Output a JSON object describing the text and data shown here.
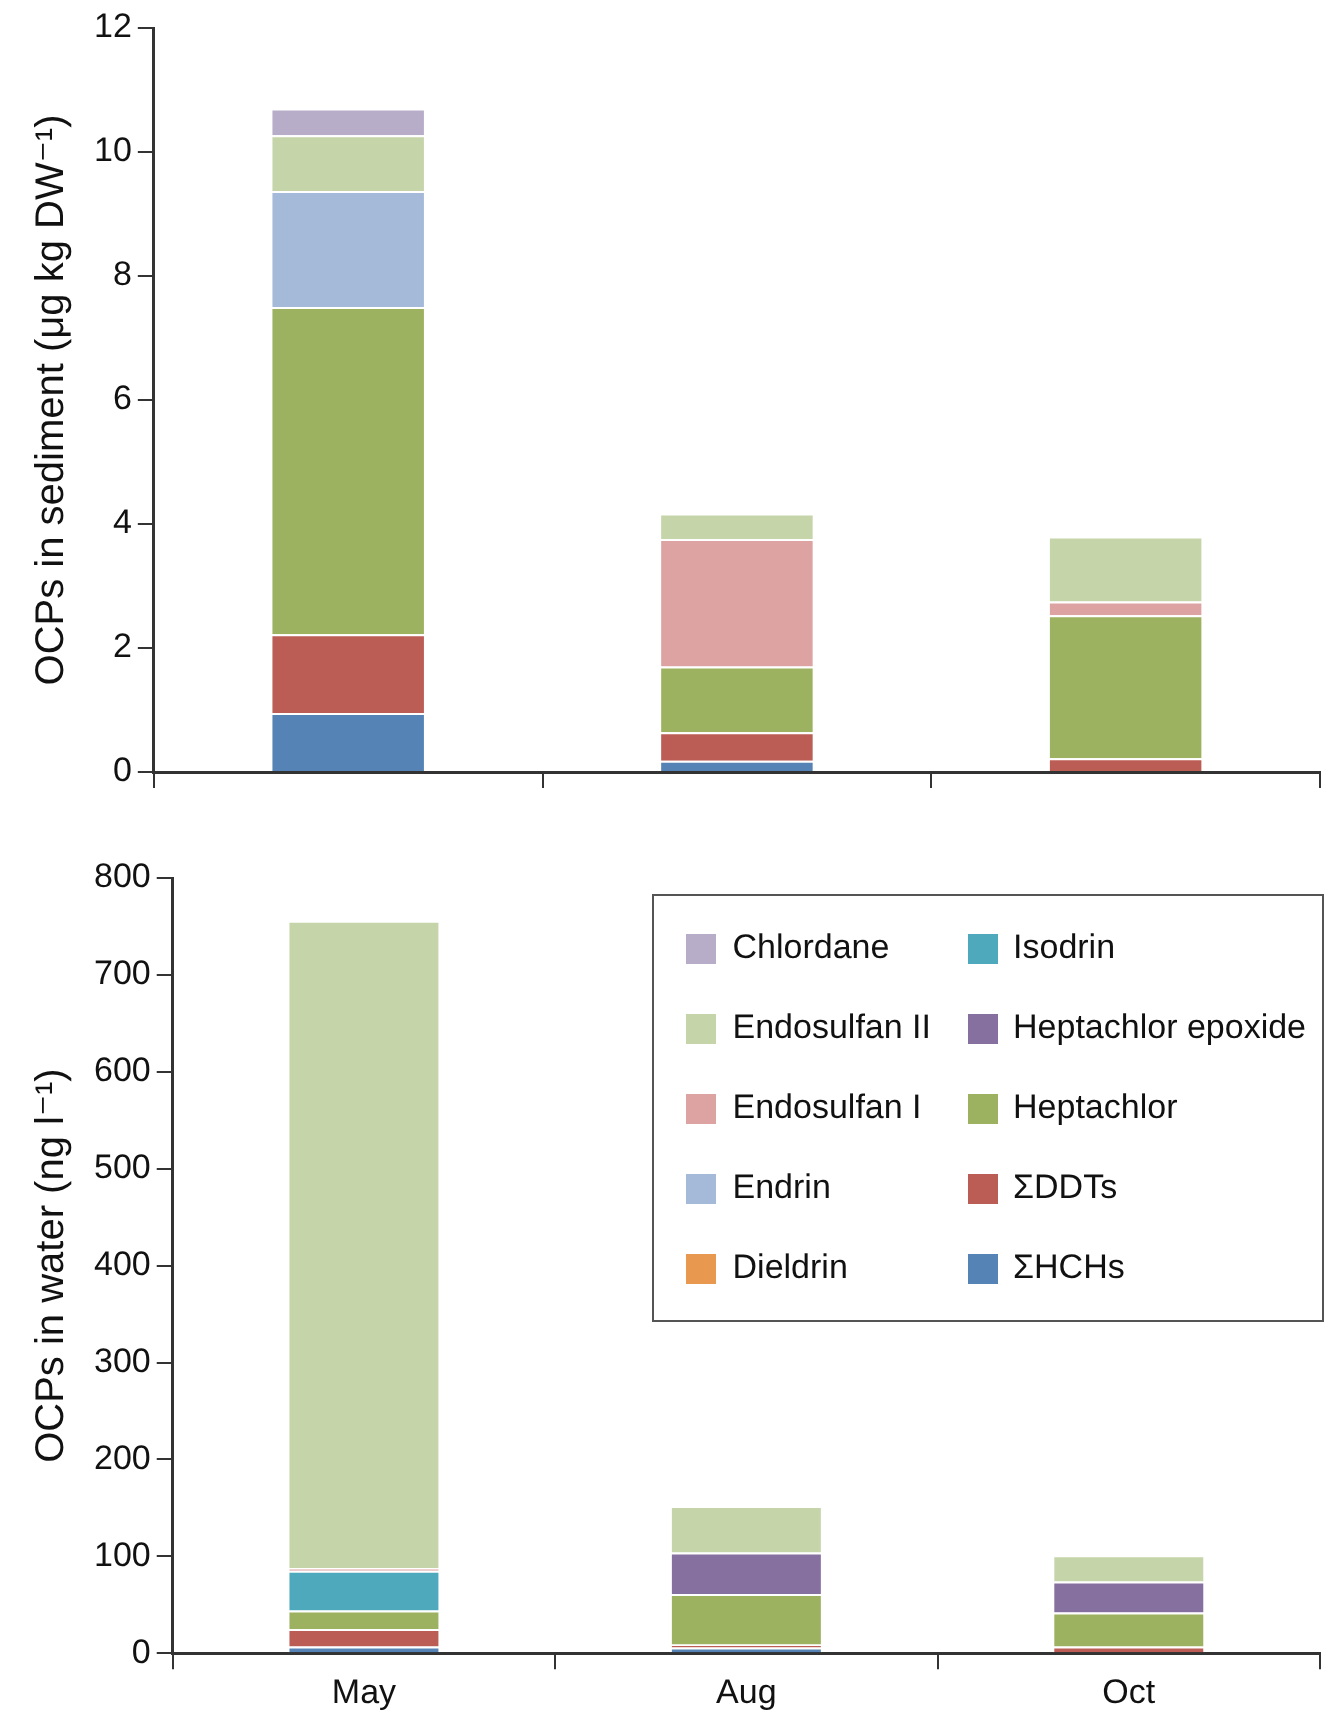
{
  "chart_data": [
    {
      "type": "bar",
      "ylabel": "OCPs in sediment (μg kg DW⁻¹)",
      "categories": [
        null,
        null,
        null
      ],
      "stacked": true,
      "ylim": [
        0,
        12
      ],
      "yticks": [
        0,
        2,
        4,
        6,
        8,
        10,
        12
      ],
      "grid": false,
      "legend": false,
      "tick_labels": "y",
      "series": [
        {
          "color": "#5683b5",
          "values": [
            0.95,
            0.18,
            0
          ]
        },
        {
          "color": "#bb5c55",
          "values": [
            1.27,
            0.46,
            0.22
          ]
        },
        {
          "color": "#9db260",
          "values": [
            5.28,
            1.06,
            2.31
          ]
        },
        {
          "color": "#a5b9d9",
          "values": [
            1.87,
            0,
            0
          ]
        },
        {
          "color": "#dda3a2",
          "values": [
            0,
            2.06,
            0.22
          ]
        },
        {
          "color": "#c6d5a9",
          "values": [
            0.9,
            0.41,
            1.05
          ]
        },
        {
          "color": "#b8adc9",
          "values": [
            0.43,
            0,
            0
          ]
        }
      ]
    },
    {
      "type": "bar",
      "ylabel": "OCPs in water (ng l⁻¹)",
      "categories": [
        "May",
        "Aug",
        "Oct"
      ],
      "stacked": true,
      "ylim": [
        0,
        800
      ],
      "yticks": [
        0,
        100,
        200,
        300,
        400,
        500,
        600,
        700,
        800
      ],
      "grid": false,
      "legend": "top right",
      "series": [
        {
          "name": "ΣHCHs",
          "color": "#5683b5",
          "values": [
            7,
            6,
            0
          ]
        },
        {
          "name": "ΣDDTs",
          "color": "#bb5c55",
          "values": [
            18,
            3,
            7
          ]
        },
        {
          "name": "Heptachlor",
          "color": "#9db260",
          "values": [
            19,
            52,
            35
          ]
        },
        {
          "name": "Heptachlor epoxide",
          "color": "#86709f",
          "values": [
            0,
            43,
            32
          ]
        },
        {
          "name": "Isodrin",
          "color": "#4fa9bd",
          "values": [
            41,
            0,
            0
          ]
        },
        {
          "name": "Dieldrin",
          "color": "#e8994f",
          "values": [
            0,
            0,
            0
          ]
        },
        {
          "name": "Endrin",
          "color": "#a5b9d9",
          "values": [
            0,
            0,
            0
          ]
        },
        {
          "name": "Endosulfan I",
          "color": "#dda3a2",
          "values": [
            3,
            0,
            0
          ]
        },
        {
          "name": "Endosulfan II",
          "color": "#c6d5a9",
          "values": [
            668,
            48,
            27
          ]
        },
        {
          "name": "Chlordane",
          "color": "#b8adc9",
          "values": [
            0,
            0,
            0
          ]
        }
      ]
    }
  ]
}
